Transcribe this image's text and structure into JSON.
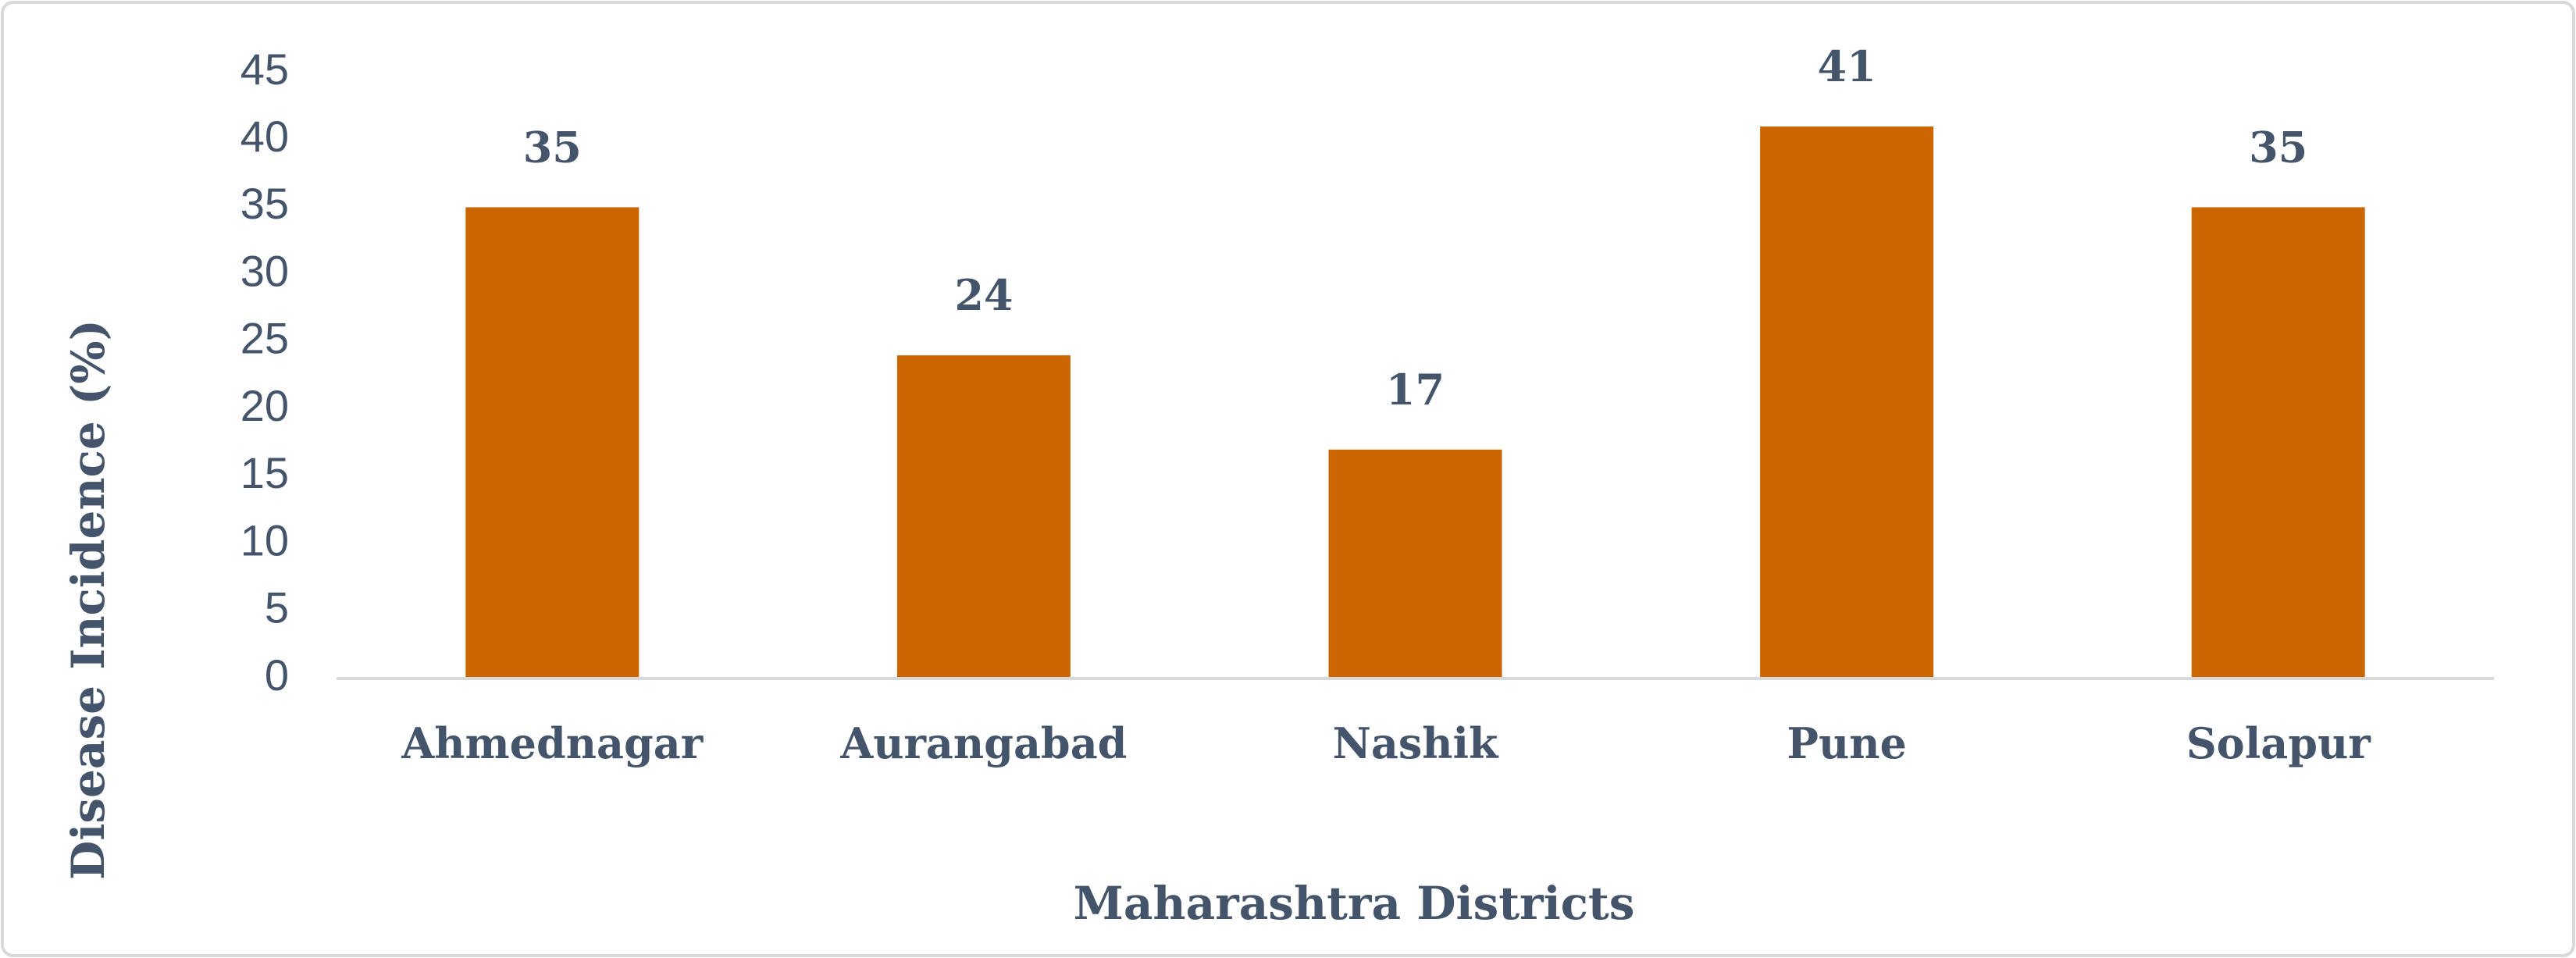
{
  "chart_data": {
    "type": "bar",
    "x_label": "Maharashtra Districts",
    "y_label": "Disease Incidence (%)",
    "categories": [
      "Ahmednagar",
      "Aurangabad",
      "Nashik",
      "Pune",
      "Solapur"
    ],
    "values": [
      35,
      24,
      17,
      41,
      35
    ],
    "color": "#cc6600",
    "ylim": [
      0,
      45
    ],
    "yticks": [
      0,
      5,
      10,
      15,
      20,
      25,
      30,
      35,
      40,
      45
    ],
    "grid": false
  }
}
